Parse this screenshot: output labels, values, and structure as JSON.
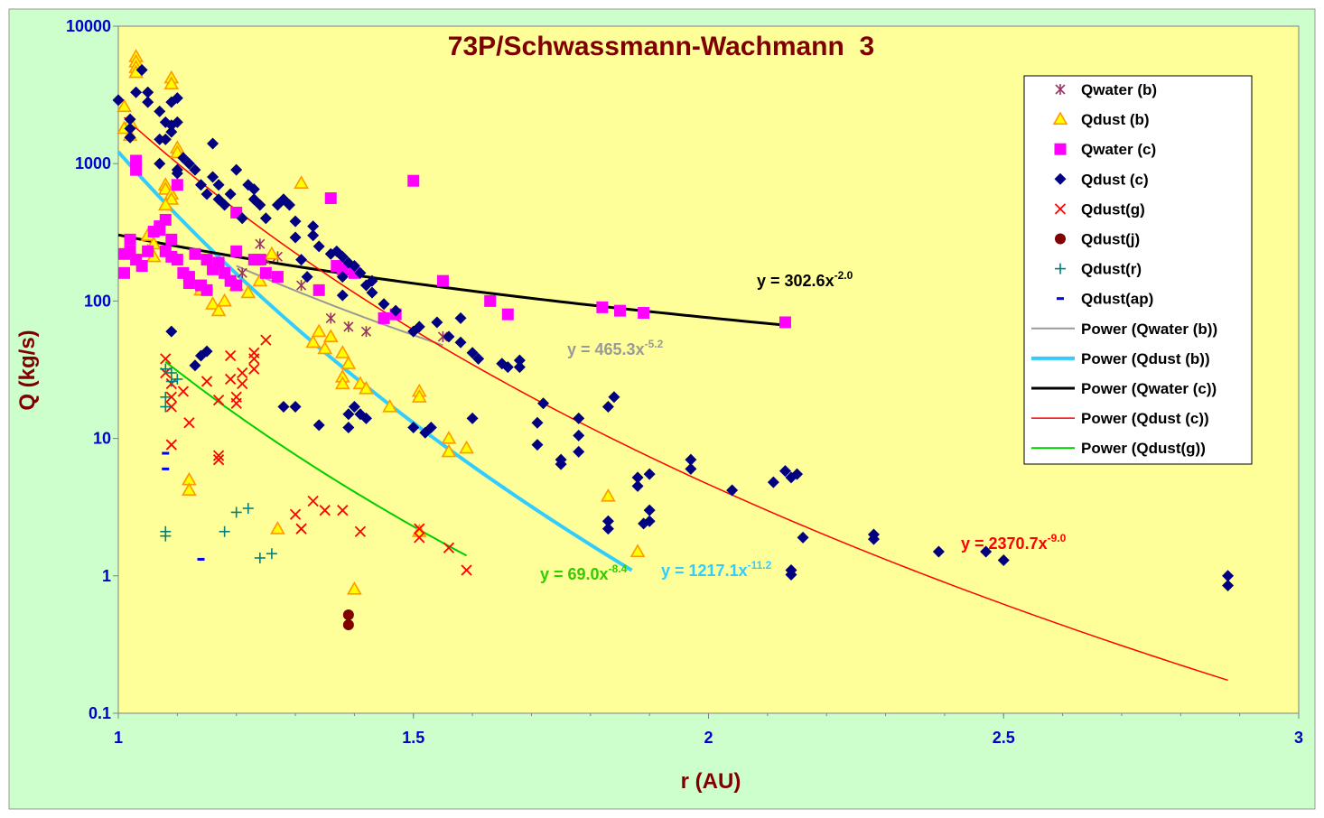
{
  "chart_data": {
    "type": "scatter",
    "title": "73P/Schwassmann-Wachmann  3",
    "xlabel": "r (AU)",
    "ylabel": "Q (kg/s)",
    "xlim": [
      1,
      3
    ],
    "ylim": [
      0.1,
      10000
    ],
    "yscale": "log",
    "grid": false,
    "legend_position": "right",
    "background_color": "#ffff99",
    "outer_background_color": "#ccffcc",
    "x_ticks": [
      "1",
      "1.5",
      "2",
      "2.5",
      "3"
    ],
    "y_ticks": [
      "0.1",
      "1",
      "10",
      "100",
      "1000",
      "10000"
    ],
    "series": [
      {
        "name": "Qwater (b)",
        "marker": "star",
        "color": "#993366",
        "points": [
          [
            1.24,
            260
          ],
          [
            1.25,
            200
          ],
          [
            1.31,
            130
          ],
          [
            1.36,
            75
          ],
          [
            1.39,
            65
          ],
          [
            1.42,
            60
          ],
          [
            1.55,
            55
          ],
          [
            1.27,
            210
          ],
          [
            1.21,
            160
          ]
        ]
      },
      {
        "name": "Qdust (b)",
        "marker": "triangle",
        "color": "#ff9900",
        "points": [
          [
            1.03,
            6000
          ],
          [
            1.03,
            5500
          ],
          [
            1.03,
            5000
          ],
          [
            1.03,
            4600
          ],
          [
            1.09,
            4200
          ],
          [
            1.09,
            3800
          ],
          [
            1.01,
            2600
          ],
          [
            1.02,
            2000
          ],
          [
            1.01,
            1800
          ],
          [
            1.02,
            1600
          ],
          [
            1.1,
            1300
          ],
          [
            1.1,
            1200
          ],
          [
            1.08,
            700
          ],
          [
            1.08,
            650
          ],
          [
            1.09,
            600
          ],
          [
            1.09,
            550
          ],
          [
            1.08,
            500
          ],
          [
            1.31,
            720
          ],
          [
            1.05,
            300
          ],
          [
            1.06,
            260
          ],
          [
            1.05,
            230
          ],
          [
            1.06,
            210
          ],
          [
            1.14,
            120
          ],
          [
            1.16,
            95
          ],
          [
            1.17,
            85
          ],
          [
            1.18,
            100
          ],
          [
            1.2,
            130
          ],
          [
            1.22,
            115
          ],
          [
            1.24,
            140
          ],
          [
            1.26,
            220
          ],
          [
            1.33,
            50
          ],
          [
            1.34,
            60
          ],
          [
            1.36,
            55
          ],
          [
            1.35,
            45
          ],
          [
            1.38,
            42
          ],
          [
            1.39,
            35
          ],
          [
            1.38,
            28
          ],
          [
            1.41,
            25
          ],
          [
            1.38,
            25
          ],
          [
            1.42,
            23
          ],
          [
            1.46,
            17
          ],
          [
            1.51,
            22
          ],
          [
            1.51,
            20
          ],
          [
            1.56,
            10
          ],
          [
            1.56,
            8
          ],
          [
            1.59,
            8.5
          ],
          [
            1.12,
            5
          ],
          [
            1.12,
            4.2
          ],
          [
            1.27,
            2.2
          ],
          [
            1.51,
            2.1
          ],
          [
            1.83,
            3.8
          ],
          [
            1.88,
            1.5
          ],
          [
            1.4,
            0.8
          ]
        ]
      },
      {
        "name": "Qwater (c)",
        "marker": "square",
        "color": "#ff00ff",
        "points": [
          [
            1.03,
            1050
          ],
          [
            1.03,
            900
          ],
          [
            1.1,
            700
          ],
          [
            1.01,
            220
          ],
          [
            1.01,
            160
          ],
          [
            1.02,
            280
          ],
          [
            1.02,
            230
          ],
          [
            1.03,
            200
          ],
          [
            1.04,
            180
          ],
          [
            1.05,
            230
          ],
          [
            1.06,
            320
          ],
          [
            1.07,
            330
          ],
          [
            1.07,
            350
          ],
          [
            1.08,
            230
          ],
          [
            1.08,
            390
          ],
          [
            1.09,
            280
          ],
          [
            1.09,
            210
          ],
          [
            1.1,
            200
          ],
          [
            1.11,
            160
          ],
          [
            1.12,
            150
          ],
          [
            1.12,
            135
          ],
          [
            1.13,
            220
          ],
          [
            1.14,
            130
          ],
          [
            1.15,
            120
          ],
          [
            1.15,
            200
          ],
          [
            1.16,
            170
          ],
          [
            1.17,
            190
          ],
          [
            1.18,
            160
          ],
          [
            1.19,
            140
          ],
          [
            1.2,
            230
          ],
          [
            1.2,
            130
          ],
          [
            1.2,
            440
          ],
          [
            1.23,
            200
          ],
          [
            1.24,
            200
          ],
          [
            1.25,
            160
          ],
          [
            1.27,
            150
          ],
          [
            1.34,
            120
          ],
          [
            1.36,
            560
          ],
          [
            1.37,
            180
          ],
          [
            1.38,
            170
          ],
          [
            1.4,
            160
          ],
          [
            1.45,
            75
          ],
          [
            1.47,
            80
          ],
          [
            1.5,
            750
          ],
          [
            1.55,
            140
          ],
          [
            1.63,
            100
          ],
          [
            1.66,
            80
          ],
          [
            1.82,
            90
          ],
          [
            1.85,
            85
          ],
          [
            1.89,
            82
          ],
          [
            2.13,
            70
          ]
        ]
      },
      {
        "name": "Qdust (c)",
        "marker": "diamond",
        "color": "#000080",
        "points": [
          [
            1,
            2900
          ],
          [
            1.02,
            2100
          ],
          [
            1.02,
            1800
          ],
          [
            1.02,
            1550
          ],
          [
            1.03,
            3300
          ],
          [
            1.04,
            4800
          ],
          [
            1.05,
            3300
          ],
          [
            1.05,
            2800
          ],
          [
            1.07,
            2400
          ],
          [
            1.07,
            1500
          ],
          [
            1.07,
            1000
          ],
          [
            1.08,
            2000
          ],
          [
            1.08,
            1500
          ],
          [
            1.09,
            2800
          ],
          [
            1.09,
            1900
          ],
          [
            1.09,
            1700
          ],
          [
            1.1,
            3000
          ],
          [
            1.1,
            2000
          ],
          [
            1.1,
            900
          ],
          [
            1.1,
            850
          ],
          [
            1.11,
            1100
          ],
          [
            1.12,
            1000
          ],
          [
            1.13,
            900
          ],
          [
            1.14,
            700
          ],
          [
            1.15,
            600
          ],
          [
            1.16,
            1400
          ],
          [
            1.16,
            800
          ],
          [
            1.17,
            700
          ],
          [
            1.17,
            550
          ],
          [
            1.18,
            500
          ],
          [
            1.19,
            600
          ],
          [
            1.2,
            900
          ],
          [
            1.21,
            400
          ],
          [
            1.22,
            700
          ],
          [
            1.23,
            650
          ],
          [
            1.23,
            550
          ],
          [
            1.24,
            500
          ],
          [
            1.25,
            400
          ],
          [
            1.27,
            500
          ],
          [
            1.28,
            550
          ],
          [
            1.29,
            500
          ],
          [
            1.3,
            380
          ],
          [
            1.3,
            290
          ],
          [
            1.31,
            200
          ],
          [
            1.32,
            150
          ],
          [
            1.33,
            350
          ],
          [
            1.33,
            300
          ],
          [
            1.34,
            250
          ],
          [
            1.36,
            220
          ],
          [
            1.37,
            230
          ],
          [
            1.38,
            210
          ],
          [
            1.38,
            150
          ],
          [
            1.38,
            110
          ],
          [
            1.39,
            190
          ],
          [
            1.4,
            180
          ],
          [
            1.41,
            160
          ],
          [
            1.42,
            130
          ],
          [
            1.43,
            140
          ],
          [
            1.43,
            115
          ],
          [
            1.45,
            95
          ],
          [
            1.47,
            85
          ],
          [
            1.5,
            60
          ],
          [
            1.51,
            65
          ],
          [
            1.54,
            70
          ],
          [
            1.56,
            55
          ],
          [
            1.58,
            50
          ],
          [
            1.58,
            75
          ],
          [
            1.6,
            42
          ],
          [
            1.61,
            38
          ],
          [
            1.65,
            35
          ],
          [
            1.66,
            33
          ],
          [
            1.68,
            33
          ],
          [
            1.68,
            37
          ],
          [
            1.09,
            60
          ],
          [
            1.14,
            40
          ],
          [
            1.15,
            43
          ],
          [
            1.13,
            34
          ],
          [
            1.28,
            17
          ],
          [
            1.3,
            17
          ],
          [
            1.34,
            12.5
          ],
          [
            1.39,
            15
          ],
          [
            1.39,
            12
          ],
          [
            1.4,
            17
          ],
          [
            1.41,
            15
          ],
          [
            1.42,
            14
          ],
          [
            1.5,
            12
          ],
          [
            1.52,
            11
          ],
          [
            1.53,
            12
          ],
          [
            1.6,
            14
          ],
          [
            1.72,
            18
          ],
          [
            1.71,
            13
          ],
          [
            1.71,
            9
          ],
          [
            1.75,
            7
          ],
          [
            1.75,
            6.5
          ],
          [
            1.78,
            14
          ],
          [
            1.78,
            10.5
          ],
          [
            1.78,
            8
          ],
          [
            1.83,
            17
          ],
          [
            1.84,
            20
          ],
          [
            1.83,
            2.5
          ],
          [
            1.83,
            2.2
          ],
          [
            1.88,
            5.2
          ],
          [
            1.88,
            4.5
          ],
          [
            1.9,
            5.5
          ],
          [
            1.9,
            3
          ],
          [
            1.89,
            2.4
          ],
          [
            1.9,
            2.5
          ],
          [
            1.97,
            7
          ],
          [
            1.97,
            6
          ],
          [
            2.04,
            4.2
          ],
          [
            2.11,
            4.8
          ],
          [
            2.13,
            5.8
          ],
          [
            2.14,
            5.2
          ],
          [
            2.15,
            5.5
          ],
          [
            2.14,
            1.1
          ],
          [
            2.14,
            1.02
          ],
          [
            2.16,
            1.9
          ],
          [
            2.28,
            2
          ],
          [
            2.28,
            1.85
          ],
          [
            2.39,
            1.5
          ],
          [
            2.47,
            1.5
          ],
          [
            2.5,
            1.3
          ],
          [
            2.88,
            1
          ],
          [
            2.88,
            0.85
          ]
        ]
      },
      {
        "name": "Qdust(g)",
        "marker": "x",
        "color": "#ff0000",
        "points": [
          [
            1.08,
            38
          ],
          [
            1.08,
            30
          ],
          [
            1.09,
            25
          ],
          [
            1.09,
            20
          ],
          [
            1.09,
            17
          ],
          [
            1.09,
            9
          ],
          [
            1.11,
            22
          ],
          [
            1.12,
            13
          ],
          [
            1.15,
            26
          ],
          [
            1.17,
            19
          ],
          [
            1.17,
            7.5
          ],
          [
            1.17,
            7
          ],
          [
            1.19,
            40
          ],
          [
            1.19,
            27
          ],
          [
            1.2,
            20
          ],
          [
            1.2,
            18
          ],
          [
            1.21,
            25
          ],
          [
            1.21,
            30
          ],
          [
            1.23,
            32
          ],
          [
            1.23,
            38
          ],
          [
            1.23,
            42
          ],
          [
            1.25,
            52
          ],
          [
            1.3,
            2.8
          ],
          [
            1.31,
            2.2
          ],
          [
            1.33,
            3.5
          ],
          [
            1.35,
            3
          ],
          [
            1.38,
            3
          ],
          [
            1.41,
            2.1
          ],
          [
            1.51,
            2.2
          ],
          [
            1.51,
            1.9
          ],
          [
            1.56,
            1.6
          ],
          [
            1.59,
            1.1
          ]
        ]
      },
      {
        "name": "Qdust(j)",
        "marker": "circle",
        "color": "#800000",
        "points": [
          [
            1.39,
            0.52
          ],
          [
            1.39,
            0.44
          ]
        ]
      },
      {
        "name": "Qdust(r)",
        "marker": "plus",
        "color": "#008080",
        "points": [
          [
            1.08,
            17
          ],
          [
            1.08,
            20
          ],
          [
            1.08,
            32
          ],
          [
            1.09,
            26
          ],
          [
            1.09,
            30
          ],
          [
            1.1,
            27
          ],
          [
            1.08,
            2.1
          ],
          [
            1.08,
            1.95
          ],
          [
            1.18,
            2.1
          ],
          [
            1.2,
            2.9
          ],
          [
            1.22,
            3.1
          ],
          [
            1.24,
            1.35
          ],
          [
            1.26,
            1.45
          ]
        ]
      },
      {
        "name": "Qdust(ap)",
        "marker": "dash",
        "color": "#0000ff",
        "points": [
          [
            1.08,
            7.8
          ],
          [
            1.08,
            6
          ],
          [
            1.14,
            1.32
          ]
        ]
      }
    ],
    "fits": [
      {
        "name": "Power (Qwater (b))",
        "color": "#999999",
        "width": 2,
        "a": 465.3,
        "b": -5.2,
        "xrange": [
          1.2,
          1.55
        ],
        "equation": "y = 465.3x",
        "exponent": "-5.2"
      },
      {
        "name": "Power (Qdust (b))",
        "color": "#33ccff",
        "width": 4,
        "a": 1217.1,
        "b": -11.2,
        "xrange": [
          1,
          1.87
        ],
        "equation": "y = 1217.1x",
        "exponent": "-11.2"
      },
      {
        "name": "Power (Qwater (c))",
        "color": "#000000",
        "width": 3,
        "a": 302.6,
        "b": -2.0,
        "xrange": [
          1,
          2.13
        ],
        "equation": "y = 302.6x",
        "exponent": "-2.0"
      },
      {
        "name": "Power (Qdust (c))",
        "color": "#ff0000",
        "width": 1.5,
        "a": 2370.7,
        "b": -9.0,
        "xrange": [
          1.01,
          2.88
        ],
        "equation": "y = 2370.7x",
        "exponent": "-9.0"
      },
      {
        "name": "Power (Qdust(g))",
        "color": "#00cc00",
        "width": 2,
        "a": 69.0,
        "b": -8.4,
        "xrange": [
          1.08,
          1.59
        ],
        "equation": "y = 69.0x",
        "exponent": "-8.4"
      }
    ]
  }
}
